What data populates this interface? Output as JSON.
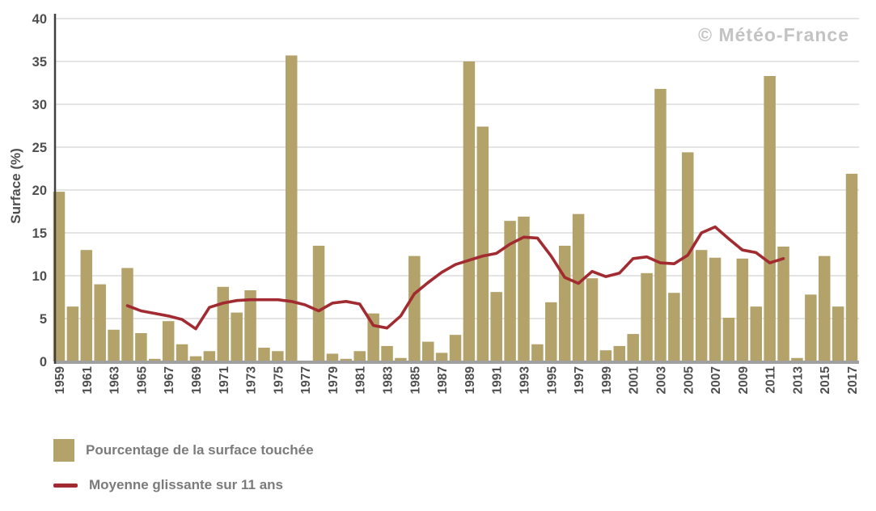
{
  "watermark": "© Météo-France",
  "y_axis": {
    "label": "Surface (%)"
  },
  "legend": {
    "bar_label": "Pourcentage de la surface touchée",
    "line_label": "Moyenne glissante sur 11 ans"
  },
  "colors": {
    "bar": "#b3a269",
    "line": "#a12b30",
    "axis_text": "#4f4f4f",
    "grid": "#dcdcdc",
    "y_axis_line": "#404040",
    "x_baseline": "#a0a0a0",
    "watermark": "#c3c3c3",
    "legend_text": "#7b7b7b"
  },
  "chart_data": {
    "type": "bar",
    "title": "",
    "xlabel": "",
    "ylabel": "Surface (%)",
    "ylim": [
      0,
      40
    ],
    "y_ticks": [
      0,
      5,
      10,
      15,
      20,
      25,
      30,
      35,
      40
    ],
    "grid": true,
    "legend_position": "bottom-left",
    "x_tick_labels": [
      "1959",
      "1961",
      "1963",
      "1965",
      "1967",
      "1969",
      "1971",
      "1973",
      "1975",
      "1977",
      "1979",
      "1981",
      "1983",
      "1985",
      "1987",
      "1989",
      "1991",
      "1993",
      "1995",
      "1997",
      "1999",
      "2001",
      "2003",
      "2005",
      "2007",
      "2009",
      "2011",
      "2013",
      "2015",
      "2017"
    ],
    "categories": [
      1959,
      1960,
      1961,
      1962,
      1963,
      1964,
      1965,
      1966,
      1967,
      1968,
      1969,
      1970,
      1971,
      1972,
      1973,
      1974,
      1975,
      1976,
      1977,
      1978,
      1979,
      1980,
      1981,
      1982,
      1983,
      1984,
      1985,
      1986,
      1987,
      1988,
      1989,
      1990,
      1991,
      1992,
      1993,
      1994,
      1995,
      1996,
      1997,
      1998,
      1999,
      2000,
      2001,
      2002,
      2003,
      2004,
      2005,
      2006,
      2007,
      2008,
      2009,
      2010,
      2011,
      2012,
      2013,
      2014,
      2015,
      2016,
      2017
    ],
    "series": [
      {
        "name": "Pourcentage de la surface touchée",
        "type": "bar",
        "color": "#b3a269",
        "values": [
          19.8,
          6.4,
          13.0,
          9.0,
          3.7,
          10.9,
          3.3,
          0.3,
          4.7,
          2.0,
          0.6,
          1.2,
          8.7,
          5.7,
          8.3,
          1.6,
          1.2,
          35.7,
          0.1,
          13.5,
          0.9,
          0.3,
          1.2,
          5.6,
          1.8,
          0.4,
          12.3,
          2.3,
          1.0,
          3.1,
          35.0,
          27.4,
          8.1,
          16.4,
          16.9,
          2.0,
          6.9,
          13.5,
          17.2,
          9.7,
          1.3,
          1.8,
          3.2,
          10.3,
          31.8,
          8.0,
          24.4,
          13.0,
          12.1,
          5.1,
          12.0,
          6.4,
          33.3,
          13.4,
          0.4,
          7.8,
          12.3,
          6.4,
          21.9
        ]
      },
      {
        "name": "Moyenne glissante sur 11 ans",
        "type": "line",
        "color": "#a12b30",
        "x": [
          1964,
          1965,
          1966,
          1967,
          1968,
          1969,
          1970,
          1971,
          1972,
          1973,
          1974,
          1975,
          1976,
          1977,
          1978,
          1979,
          1980,
          1981,
          1982,
          1983,
          1984,
          1985,
          1986,
          1987,
          1988,
          1989,
          1990,
          1991,
          1992,
          1993,
          1994,
          1995,
          1996,
          1997,
          1998,
          1999,
          2000,
          2001,
          2002,
          2003,
          2004,
          2005,
          2006,
          2007,
          2008,
          2009,
          2010,
          2011,
          2012
        ],
        "values": [
          6.5,
          5.9,
          5.6,
          5.3,
          4.9,
          3.8,
          6.3,
          6.8,
          7.1,
          7.2,
          7.2,
          7.2,
          7.0,
          6.6,
          5.9,
          6.8,
          7.0,
          6.7,
          4.2,
          3.9,
          5.3,
          7.9,
          9.2,
          10.4,
          11.3,
          11.8,
          12.3,
          12.6,
          13.7,
          14.5,
          14.4,
          12.3,
          9.8,
          9.1,
          10.5,
          9.9,
          10.3,
          12.0,
          12.2,
          11.5,
          11.4,
          12.4,
          15.0,
          15.7,
          14.3,
          13.0,
          12.7,
          11.5,
          12.0
        ]
      }
    ]
  }
}
